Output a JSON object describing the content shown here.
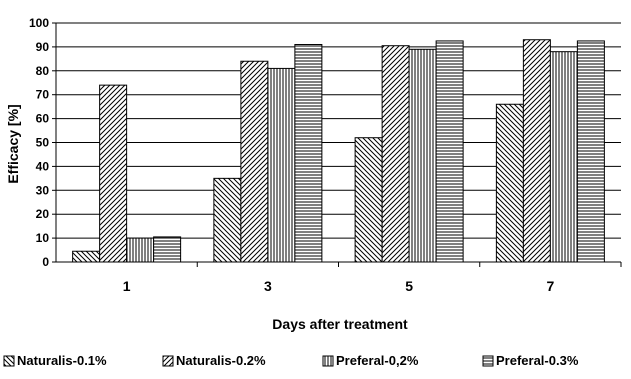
{
  "chart_data": {
    "type": "bar",
    "xlabel": "Days after treatment",
    "ylabel": "Efficacy [%]",
    "ylim": [
      0,
      100
    ],
    "yticks": [
      0,
      10,
      20,
      30,
      40,
      50,
      60,
      70,
      80,
      90,
      100
    ],
    "categories": [
      "1",
      "3",
      "5",
      "7"
    ],
    "grid": "horizontal",
    "legend_position": "bottom",
    "series": [
      {
        "name": "Naturalis-0.1%",
        "pattern": "diagonal-down",
        "values": [
          4.5,
          35,
          52,
          66
        ]
      },
      {
        "name": "Naturalis-0.2%",
        "pattern": "diagonal-up",
        "values": [
          74,
          84,
          90.5,
          93
        ]
      },
      {
        "name": "Preferal-0,2%",
        "pattern": "vertical-lines",
        "values": [
          10,
          81,
          89,
          88
        ]
      },
      {
        "name": "Preferal-0.3%",
        "pattern": "horizontal-lines",
        "values": [
          10.5,
          91,
          92.5,
          92.5
        ]
      }
    ],
    "colors": {
      "line": "#000000",
      "fill": "#ffffff",
      "grid": "#000000"
    }
  }
}
